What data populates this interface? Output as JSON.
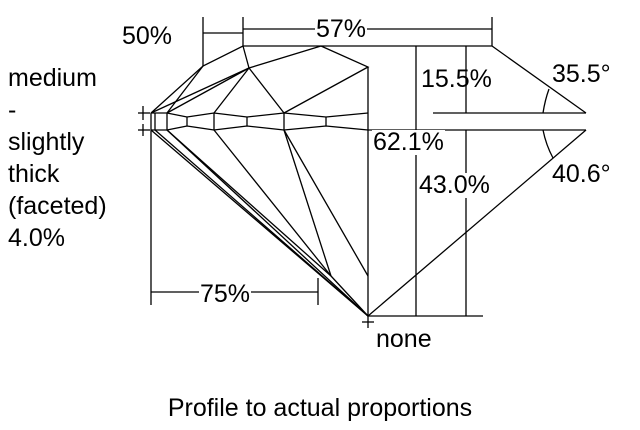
{
  "labels": {
    "lower_half_length": "75%",
    "star_length": "50%",
    "table": "57%",
    "crown_height": "15.5%",
    "crown_angle": "35.5°",
    "total_depth": "62.1%",
    "pavilion_depth": "43.0%",
    "pavilion_angle": "40.6°",
    "culet": "none"
  },
  "girdle": {
    "lines": [
      "medium",
      "-",
      "slightly",
      "thick",
      "(faceted)",
      "4.0%"
    ]
  },
  "caption": "Profile to actual proportions"
}
